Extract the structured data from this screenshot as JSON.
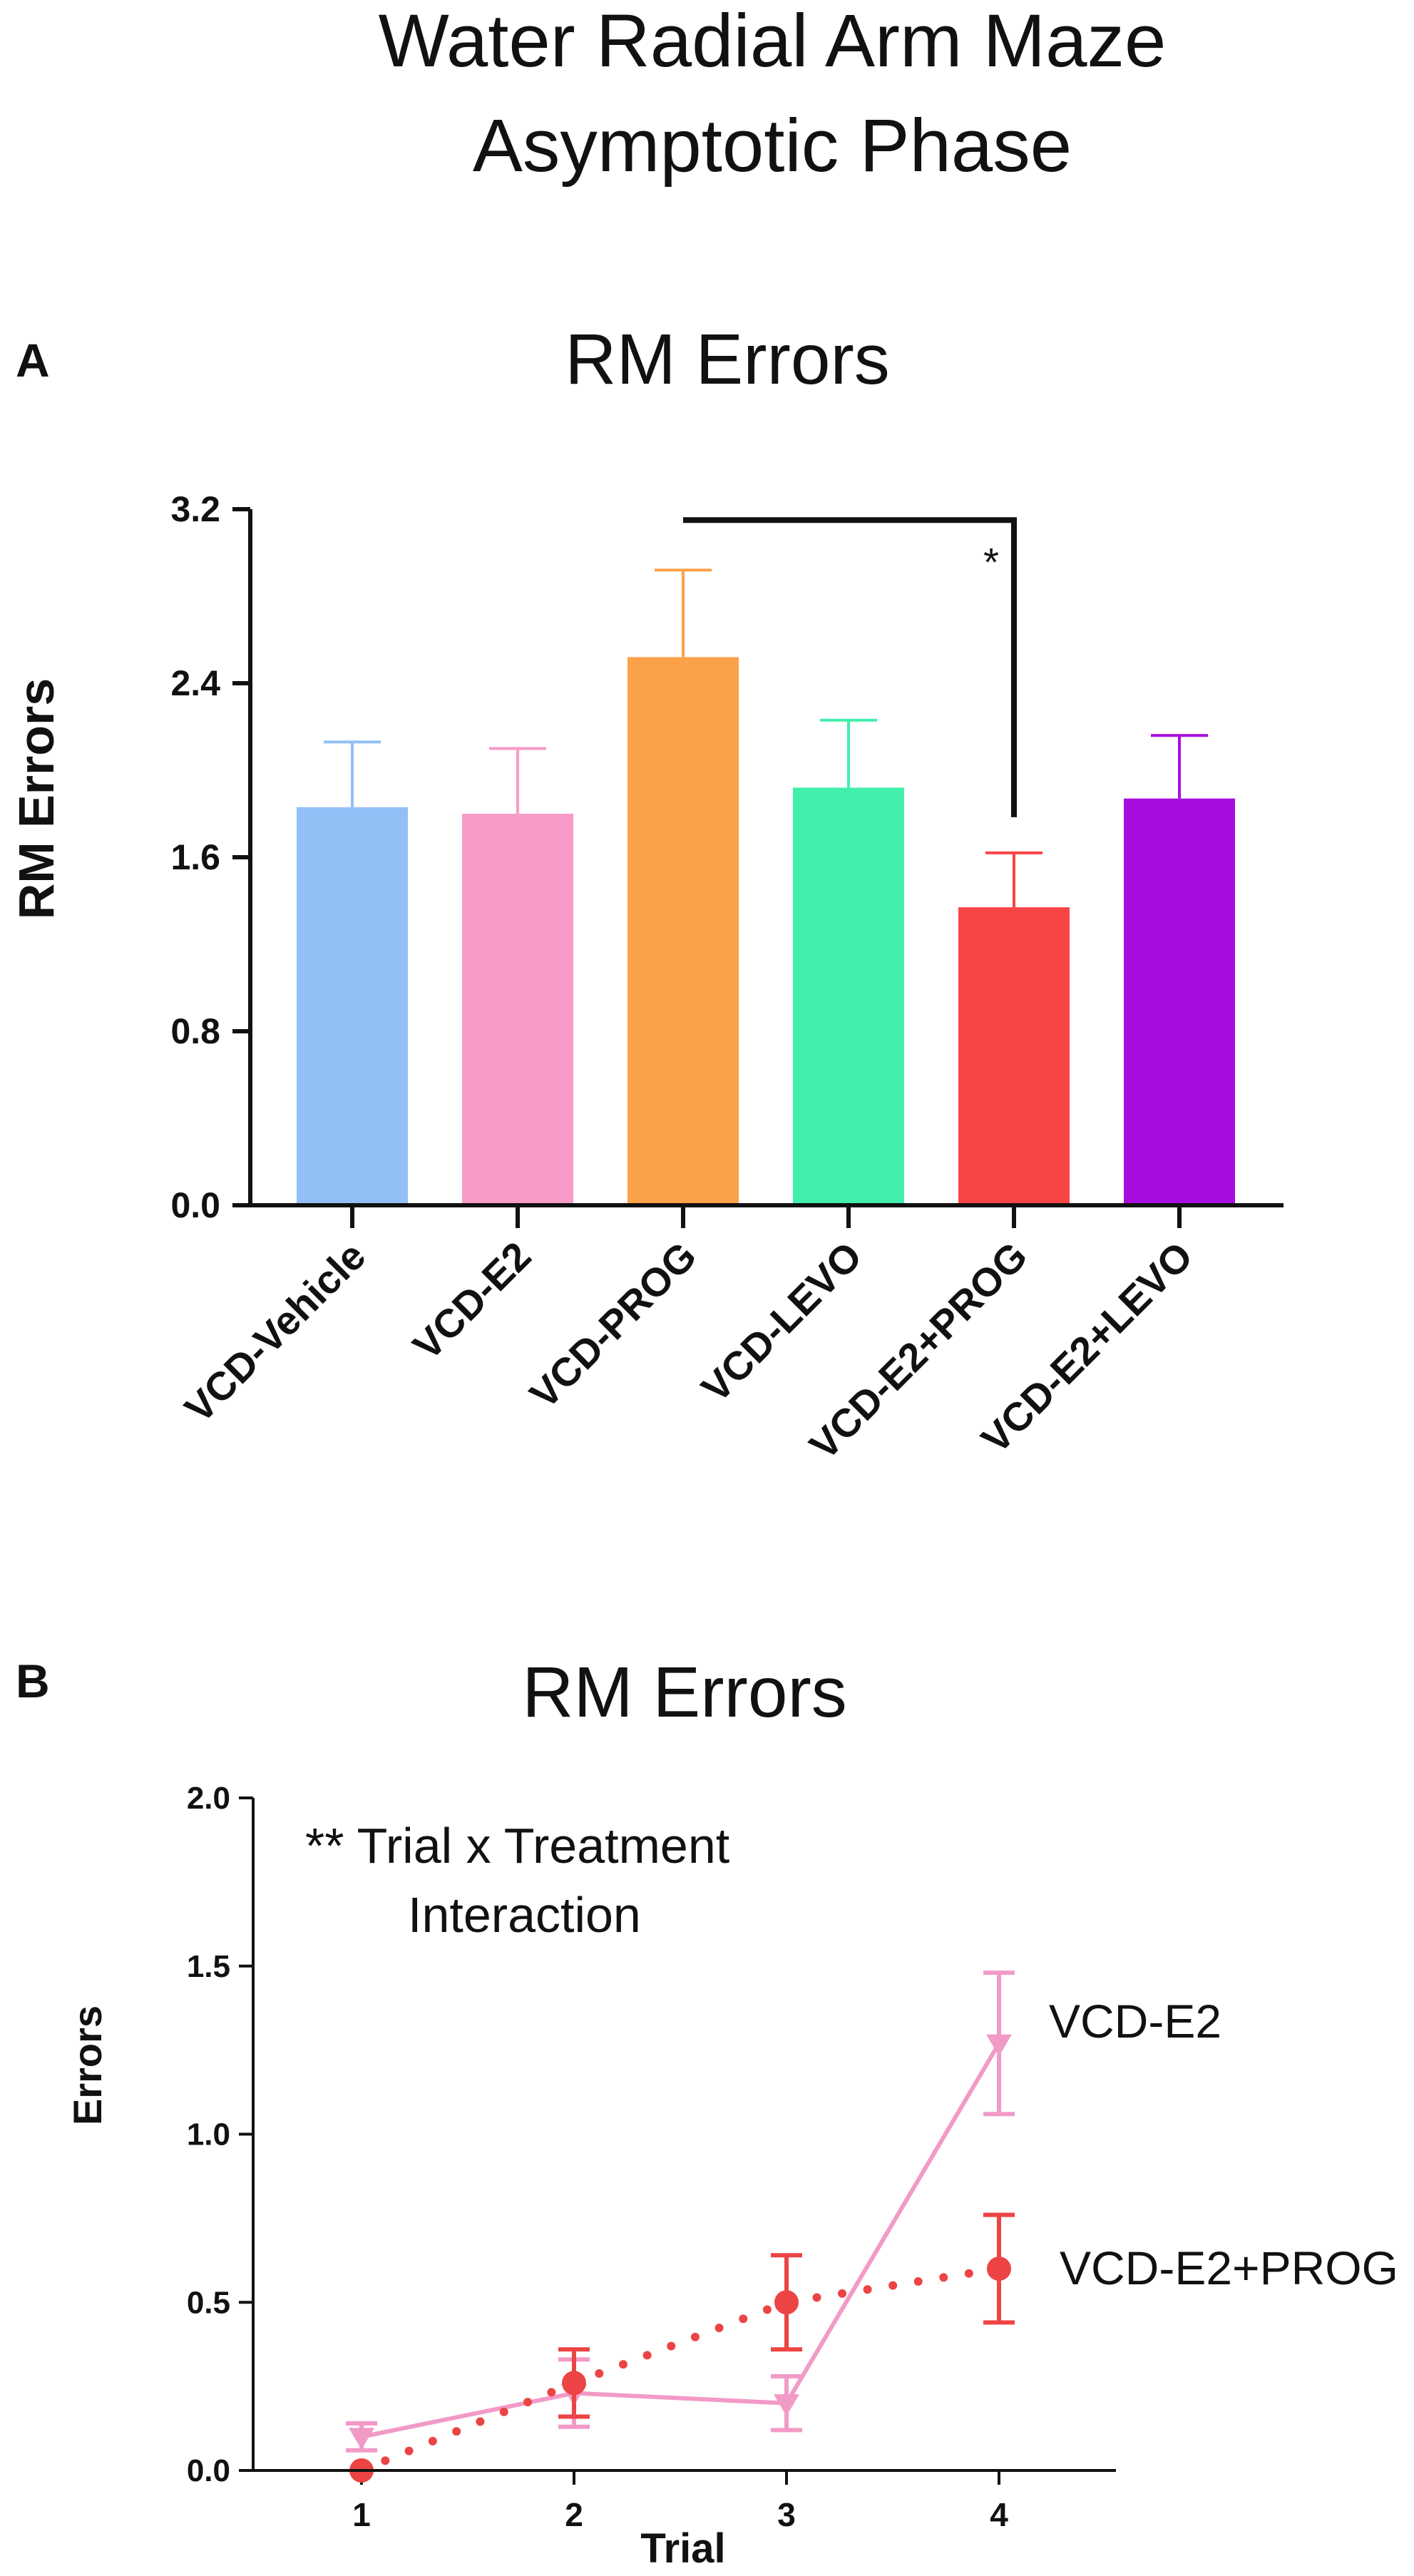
{
  "figure_title": {
    "line1": "Water Radial Arm Maze",
    "line2": "Asymptotic Phase"
  },
  "chart_data": [
    {
      "panel": "A",
      "type": "bar",
      "title": "RM Errors",
      "xlabel": "",
      "ylabel": "RM Errors",
      "ylim": [
        0,
        3.2
      ],
      "yticks": [
        0.0,
        0.8,
        1.6,
        2.4,
        3.2
      ],
      "ytick_labels": [
        "0.0",
        "0.8",
        "1.6",
        "2.4",
        "3.2"
      ],
      "categories": [
        "VCD-Vehicle",
        "VCD-E2",
        "VCD-PROG",
        "VCD-LEVO",
        "VCD-E2+PROG",
        "VCD-E2+LEVO"
      ],
      "values": [
        1.83,
        1.8,
        2.52,
        1.92,
        1.37,
        1.87
      ],
      "errors": [
        0.3,
        0.3,
        0.4,
        0.31,
        0.25,
        0.29
      ],
      "colors": [
        "#93bff7",
        "#f79bc8",
        "#fba147",
        "#44eeab",
        "#f94446",
        "#a80de0"
      ],
      "significance": {
        "from": "VCD-PROG",
        "to": "VCD-E2+PROG",
        "y": 3.15,
        "label": "*"
      },
      "grid": false
    },
    {
      "panel": "B",
      "type": "line",
      "title": "RM Errors",
      "xlabel": "Trial",
      "ylabel": "Errors",
      "xlim": [
        0.5,
        4.5
      ],
      "ylim": [
        0,
        2.0
      ],
      "x": [
        1,
        2,
        3,
        4
      ],
      "xtick_labels": [
        "1",
        "2",
        "3",
        "4"
      ],
      "yticks": [
        0.0,
        0.5,
        1.0,
        1.5,
        2.0
      ],
      "ytick_labels": [
        "0.0",
        "0.5",
        "1.0",
        "1.5",
        "2.0"
      ],
      "series": [
        {
          "name": "VCD-E2",
          "values": [
            0.1,
            0.23,
            0.2,
            1.27
          ],
          "errors": [
            0.04,
            0.1,
            0.08,
            0.21
          ],
          "color": "#f29ac7",
          "marker": "triangle-down",
          "line_style": "solid"
        },
        {
          "name": "VCD-E2+PROG",
          "values": [
            0.0,
            0.26,
            0.5,
            0.6
          ],
          "errors": [
            0.0,
            0.1,
            0.14,
            0.16
          ],
          "color": "#ec4444",
          "marker": "circle",
          "line_style": "dotted"
        }
      ],
      "annotation": {
        "line1": "** Trial x Treatment",
        "line2": "Interaction"
      },
      "grid": false
    }
  ]
}
